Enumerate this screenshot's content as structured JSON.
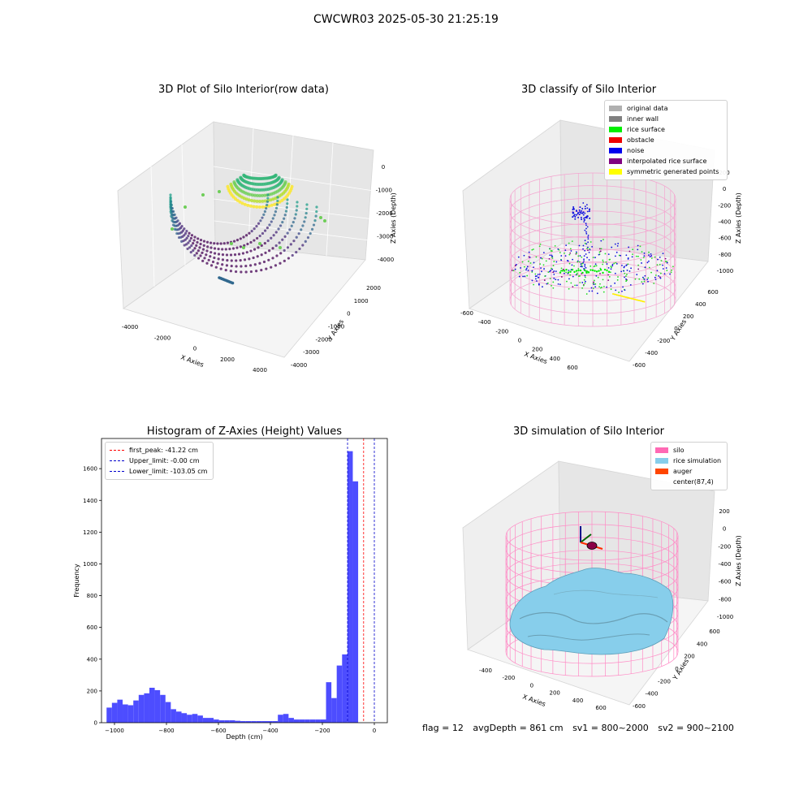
{
  "suptitle": "CWCWR03 2025-05-30 21:25:19",
  "panels": {
    "raw": {
      "title": "3D Plot of Silo Interior(row data)",
      "xlabel": "X Axies",
      "ylabel": "Y Axies",
      "zlabel": "Z Axies (Depth)",
      "xticks": [
        "-4000",
        "-2000",
        "0",
        "2000",
        "4000"
      ],
      "yticks": [
        "2000",
        "1000",
        "0",
        "-1000",
        "-2000",
        "-3000",
        "-4000"
      ],
      "zticks": [
        "0",
        "-1000",
        "-2000",
        "-3000",
        "-4000"
      ]
    },
    "classify": {
      "title": "3D classify of Silo Interior",
      "xlabel": "X Axies",
      "ylabel": "Y Axies",
      "zlabel": "Z Axies (Depth)",
      "xticks": [
        "-600",
        "-400",
        "-200",
        "0",
        "200",
        "400",
        "600"
      ],
      "yticks": [
        "600",
        "400",
        "200",
        "0",
        "-200",
        "-400",
        "-600"
      ],
      "zticks": [
        "200",
        "0",
        "-200",
        "-400",
        "-600",
        "-800",
        "-1000"
      ],
      "legend": [
        {
          "label": "original data",
          "color": "#b0b0b0"
        },
        {
          "label": "inner wall",
          "color": "#808080"
        },
        {
          "label": "rice surface",
          "color": "#00ee00"
        },
        {
          "label": "obstacle",
          "color": "#ee0000"
        },
        {
          "label": "noise",
          "color": "#0000ee"
        },
        {
          "label": "interpolated rice surface",
          "color": "#800080"
        },
        {
          "label": "symmetric generated points",
          "color": "#ffff00"
        }
      ]
    },
    "histogram": {
      "title": "Histogram of Z-Axies (Height) Values",
      "xlabel": "Depth (cm)",
      "ylabel": "Frequency",
      "legend": [
        {
          "label": "first_peak: -41.22 cm",
          "color": "#ff0000"
        },
        {
          "label": "Upper_limit: -0.00 cm",
          "color": "#0000cc"
        },
        {
          "label": "Lower_limit: -103.05 cm",
          "color": "#0000cc"
        }
      ]
    },
    "simulation": {
      "title": "3D simulation of Silo Interior",
      "xlabel": "X Axies",
      "ylabel": "Y Axies",
      "zlabel": "Z Axies (Depth)",
      "xticks": [
        "-400",
        "-200",
        "0",
        "200",
        "400",
        "600"
      ],
      "yticks": [
        "600",
        "400",
        "200",
        "0",
        "-200",
        "-400",
        "-600"
      ],
      "zticks": [
        "200",
        "0",
        "-200",
        "-400",
        "-600",
        "-800",
        "-1000"
      ],
      "legend": [
        {
          "label": "silo",
          "color": "#ff69b4"
        },
        {
          "label": "rice simulation",
          "color": "#87ceeb"
        },
        {
          "label": "auger",
          "color": "#ff4500"
        },
        {
          "label": "center(87,4)",
          "color": ""
        }
      ]
    }
  },
  "footer": {
    "flag": "flag = 12",
    "avg_depth": "avgDepth = 861 cm",
    "sv1": "sv1 = 800~2000",
    "sv2": "sv2 = 900~2100"
  },
  "chart_data": {
    "type": "bar",
    "title": "Histogram of Z-Axies (Height) Values",
    "xlabel": "Depth (cm)",
    "ylabel": "Frequency",
    "xlim": [
      -1050,
      50
    ],
    "ylim": [
      0,
      1790
    ],
    "xticks": [
      -1000,
      -800,
      -600,
      -400,
      -200,
      0
    ],
    "yticks": [
      0,
      200,
      400,
      600,
      800,
      1000,
      1200,
      1400,
      1600
    ],
    "bin_width": 20.6,
    "bin_start": -1030.5,
    "values": [
      95,
      125,
      145,
      115,
      110,
      140,
      175,
      185,
      220,
      205,
      175,
      130,
      85,
      70,
      60,
      50,
      55,
      45,
      30,
      30,
      20,
      15,
      15,
      15,
      12,
      10,
      10,
      10,
      10,
      10,
      10,
      10,
      50,
      55,
      30,
      20,
      20,
      20,
      20,
      20,
      20,
      255,
      155,
      360,
      430,
      1710,
      1520
    ],
    "vlines": [
      {
        "name": "first_peak",
        "x": -41.22,
        "color": "#ff0000"
      },
      {
        "name": "Upper_limit",
        "x": 0,
        "color": "#0000cc"
      },
      {
        "name": "Lower_limit",
        "x": -103.05,
        "color": "#0000cc"
      }
    ],
    "bar_color": "#4d4dff"
  }
}
